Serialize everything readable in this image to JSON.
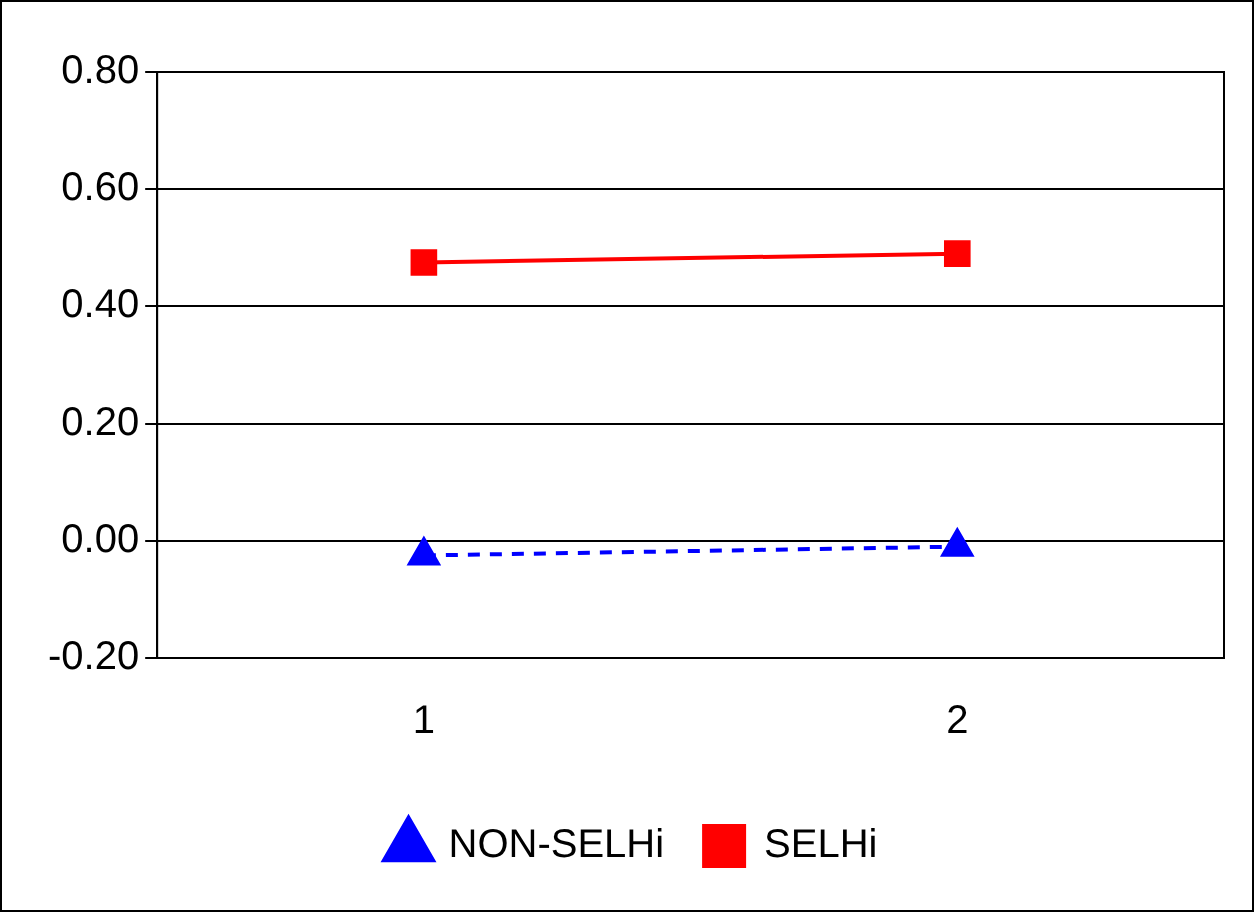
{
  "chart_data": {
    "type": "line",
    "categories": [
      "1",
      "2"
    ],
    "series": [
      {
        "name": "NON-SELHi",
        "color": "#0000ff",
        "values": [
          -0.025,
          -0.01
        ],
        "marker": "triangle",
        "line_style": "dashed"
      },
      {
        "name": "SELHi",
        "color": "#ff0000",
        "values": [
          0.475,
          0.49
        ],
        "marker": "square",
        "line_style": "solid"
      }
    ],
    "ylim": [
      -0.2,
      0.8
    ],
    "yticks": [
      {
        "value": -0.2,
        "label": "-0.20"
      },
      {
        "value": 0,
        "label": "0.00"
      },
      {
        "value": 0.2,
        "label": "0.20"
      },
      {
        "value": 0.4,
        "label": "0.40"
      },
      {
        "value": 0.6,
        "label": "0.60"
      },
      {
        "value": 0.8,
        "label": "0.80"
      }
    ],
    "grid": "y",
    "legend": "bottom"
  }
}
